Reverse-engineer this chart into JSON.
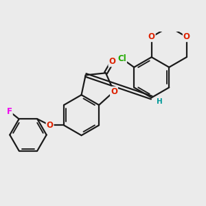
{
  "background_color": "#ebebeb",
  "bond_color": "#1a1a1a",
  "bond_width": 1.6,
  "atom_colors": {
    "O": "#dd2200",
    "Cl": "#22aa00",
    "F": "#ee00ee",
    "H": "#009999",
    "C": "#1a1a1a"
  },
  "font_size": 8.5,
  "fig_size": [
    3.0,
    3.0
  ],
  "dpi": 100
}
